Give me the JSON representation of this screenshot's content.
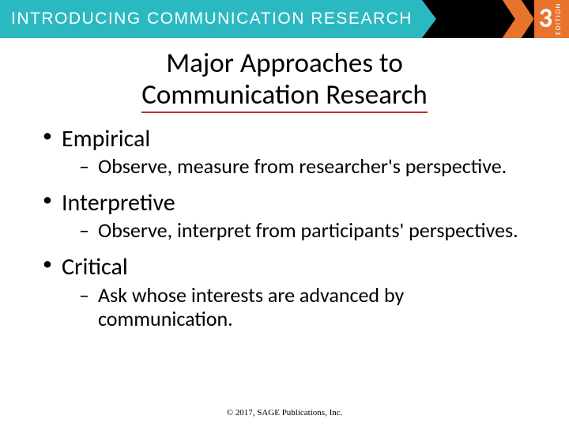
{
  "banner": {
    "title": "INTRODUCING COMMUNICATION RESEARCH",
    "edition_number": "3",
    "edition_label": "EDITION",
    "colors": {
      "teal": "#2bb9c1",
      "orange": "#e8732c",
      "black": "#000000",
      "underline": "#c22f2a"
    }
  },
  "slide": {
    "title_line1": "Major Approaches to",
    "title_line2": "Communication Research",
    "items": [
      {
        "heading": "Empirical",
        "detail": "Observe, measure from researcher's perspective."
      },
      {
        "heading": "Interpretive",
        "detail": "Observe, interpret from participants' perspectives."
      },
      {
        "heading": "Critical",
        "detail": "Ask whose interests are advanced by communication."
      }
    ]
  },
  "footer": "© 2017, SAGE Publications, Inc."
}
